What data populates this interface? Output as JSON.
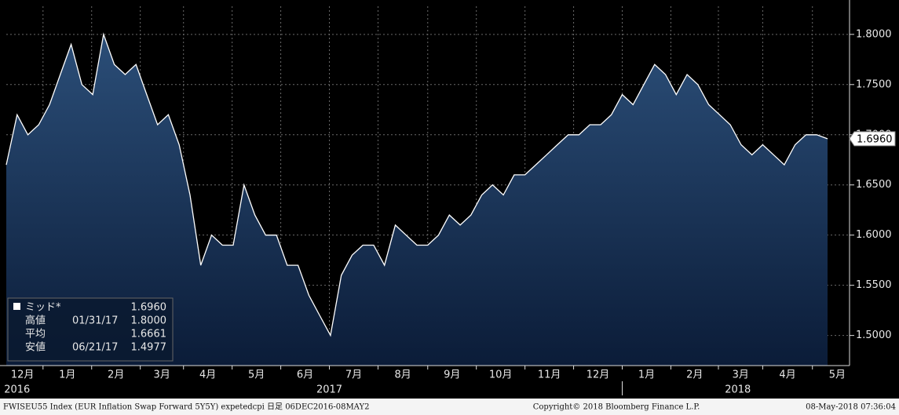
{
  "chart_data": {
    "type": "area",
    "series": [
      {
        "name": "ミッド*",
        "color": "#ffffff",
        "values": [
          1.67,
          1.72,
          1.7,
          1.71,
          1.73,
          1.76,
          1.79,
          1.75,
          1.74,
          1.8,
          1.77,
          1.76,
          1.77,
          1.74,
          1.71,
          1.72,
          1.69,
          1.64,
          1.57,
          1.6,
          1.59,
          1.59,
          1.65,
          1.62,
          1.6,
          1.6,
          1.57,
          1.57,
          1.54,
          1.52,
          1.5,
          1.56,
          1.58,
          1.59,
          1.59,
          1.57,
          1.61,
          1.6,
          1.59,
          1.59,
          1.6,
          1.62,
          1.61,
          1.62,
          1.64,
          1.65,
          1.64,
          1.66,
          1.66,
          1.67,
          1.68,
          1.69,
          1.7,
          1.7,
          1.71,
          1.71,
          1.72,
          1.74,
          1.73,
          1.75,
          1.77,
          1.76,
          1.74,
          1.76,
          1.75,
          1.73,
          1.72,
          1.71,
          1.69,
          1.68,
          1.69,
          1.68,
          1.67,
          1.69,
          1.7,
          1.7,
          1.696
        ]
      }
    ],
    "xlim": [
      0,
      76
    ],
    "xticks": [
      {
        "value": -0.4,
        "label": "12月"
      },
      {
        "value": 3.4,
        "label": "1月"
      },
      {
        "value": 7.9,
        "label": "2月"
      },
      {
        "value": 12.4,
        "label": "3月"
      },
      {
        "value": 16.4,
        "label": "4月"
      },
      {
        "value": 20.9,
        "label": "5月"
      },
      {
        "value": 25.4,
        "label": "6月"
      },
      {
        "value": 29.9,
        "label": "7月"
      },
      {
        "value": 34.4,
        "label": "8月"
      },
      {
        "value": 39,
        "label": "9月"
      },
      {
        "value": 43.5,
        "label": "10月"
      },
      {
        "value": 48,
        "label": "11月"
      },
      {
        "value": 52.5,
        "label": "12月"
      },
      {
        "value": 57,
        "label": "1月"
      },
      {
        "value": 61.5,
        "label": "2月"
      },
      {
        "value": 65.9,
        "label": "3月"
      },
      {
        "value": 70,
        "label": "4月"
      },
      {
        "value": 74.6,
        "label": "5月"
      }
    ],
    "years": [
      {
        "value": 1.0,
        "label": "2016"
      },
      {
        "value": 29.9,
        "label": "2017"
      },
      {
        "value": 67.7,
        "label": "2018"
      }
    ],
    "ylim": [
      1.47,
      1.828
    ],
    "yticks": [
      {
        "value": 1.5,
        "label": "1.5000"
      },
      {
        "value": 1.55,
        "label": "1.5500"
      },
      {
        "value": 1.6,
        "label": "1.6000"
      },
      {
        "value": 1.65,
        "label": "1.6500"
      },
      {
        "value": 1.7,
        "label": "1.7000"
      },
      {
        "value": 1.75,
        "label": "1.7500"
      },
      {
        "value": 1.8,
        "label": "1.8000"
      }
    ],
    "grid": true,
    "legend": [
      {
        "label": "ミッド*",
        "date": "",
        "value": "1.6960"
      },
      {
        "label": "高値",
        "date": "01/31/17",
        "value": "1.8000"
      },
      {
        "label": "平均",
        "date": "",
        "value": "1.6661"
      },
      {
        "label": "安値",
        "date": "06/21/17",
        "value": "1.4977"
      }
    ],
    "footer": {
      "left": "FWISEU55 Index (EUR Inflation Swap Forward 5Y5Y) expetedcpi  日足 06DEC2016-08MAY2",
      "center": "Copyright© 2018 Bloomberg Finance L.P.",
      "right": "08-May-2018 07:36:04"
    }
  }
}
